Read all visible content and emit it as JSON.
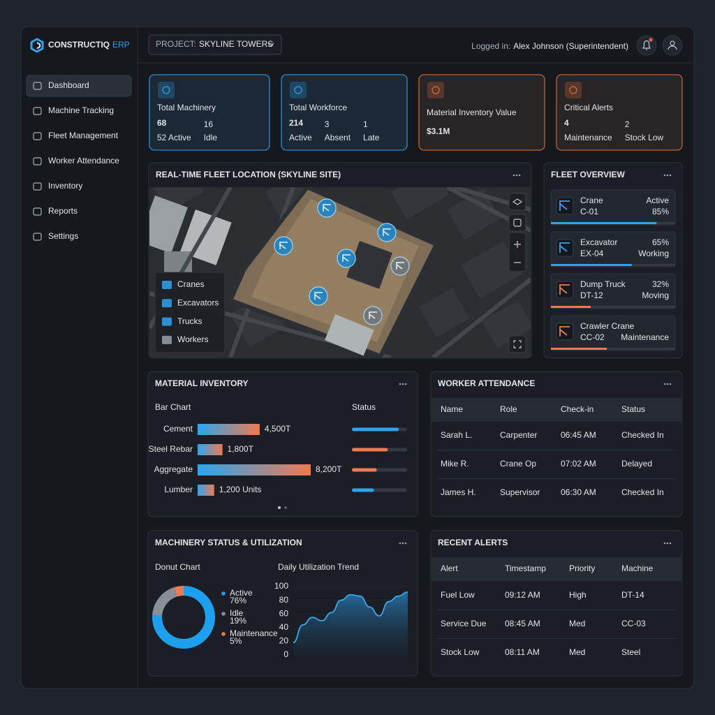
{
  "brand": {
    "name": "CONSTRUCTIQ",
    "suffix": "ERP"
  },
  "sidebar": {
    "items": [
      "Dashboard",
      "Machine Tracking",
      "Fleet Management",
      "Worker Attendance",
      "Inventory",
      "Reports",
      "Settings"
    ],
    "active": 0
  },
  "header": {
    "project_label": "PROJECT:",
    "project": "SKYLINE TOWERS",
    "logged_label": "Logged in:",
    "user": "Alex Johnson (Superintendent)"
  },
  "kpis": [
    {
      "title": "Total Machinery",
      "border": "#2e8fd0",
      "stats": [
        {
          "value": 68,
          "label": "52 Active",
          "color": "#4fb3f0"
        },
        {
          "value": 16,
          "label": "Idle",
          "color": "#b7bcc4"
        }
      ]
    },
    {
      "title": "Total Workforce",
      "border": "#2e8fd0",
      "stats": [
        {
          "value": 214,
          "label": "Active",
          "color": "#4fb3f0"
        },
        {
          "value": 3,
          "label": "Absent",
          "color": "#f08a5a"
        },
        {
          "value": 1,
          "label": "Late",
          "color": "#f08a5a"
        }
      ]
    },
    {
      "title": "Material Inventory Value",
      "border": "#c0653a",
      "value": "$3.1M"
    },
    {
      "title": "Critical Alerts",
      "border": "#c0653a",
      "stats": [
        {
          "value": 4,
          "label": "Maintenance",
          "color": "#f08a5a"
        },
        {
          "value": 2,
          "label": "Stock Low",
          "color": "#f08a5a"
        }
      ]
    }
  ],
  "map": {
    "title": "REAL-TIME FLEET LOCATION (SKYLINE SITE)",
    "legend": [
      "Cranes",
      "Excavators",
      "Trucks",
      "Workers"
    ]
  },
  "fleet": {
    "title": "FLEET OVERVIEW",
    "items": [
      {
        "name": "Crane",
        "id": "C-01",
        "top": "Active",
        "bottom": "85%",
        "progress": 85,
        "color": "#2ea3f2"
      },
      {
        "name": "Excavator",
        "id": "EX-04",
        "top": "65%",
        "bottom": "Working",
        "progress": 65,
        "color": "#2ea3f2"
      },
      {
        "name": "Dump Truck",
        "id": "DT-12",
        "top": "32%",
        "bottom": "Moving",
        "progress": 32,
        "color": "#f07a50"
      },
      {
        "name": "Crawler Crane",
        "id": "CC-02",
        "bottom": "Maintenance",
        "progress": 45,
        "color": "#f07a50"
      }
    ]
  },
  "inventory": {
    "title": "MATERIAL INVENTORY",
    "chart_label": "Bar Chart",
    "status_label": "Status",
    "categories": [
      "Cement",
      "Steel Rebar",
      "Aggregate",
      "Lumber"
    ],
    "values": [
      4500,
      1800,
      8200,
      1200
    ],
    "value_labels": [
      "4,500T",
      "1,800T",
      "8,200T",
      "1,200 Units"
    ],
    "status": [
      85,
      65,
      45,
      40
    ],
    "status_colors": [
      "#2ea3f2",
      "#f07a50",
      "#f07a50",
      "#2ea3f2"
    ]
  },
  "attendance": {
    "title": "WORKER ATTENDANCE",
    "columns": [
      "Name",
      "Role",
      "Check-in",
      "Status"
    ],
    "rows": [
      [
        "Sarah L.",
        "Carpenter",
        "06:45 AM",
        "Checked In"
      ],
      [
        "Mike R.",
        "Crane Op",
        "07:02 AM",
        "Delayed"
      ],
      [
        "James H.",
        "Supervisor",
        "06:30 AM",
        "Checked In"
      ]
    ],
    "status_colors": [
      "#3ecf8e",
      "#f07a50",
      "#3ecf8e"
    ]
  },
  "machinery": {
    "title": "MACHINERY STATUS & UTILIZATION",
    "donut": {
      "label": "Donut Chart",
      "categories": [
        "Active",
        "Idle",
        "Maintenance"
      ],
      "values": [
        76,
        19,
        5
      ],
      "value_labels": [
        "76%",
        "19%",
        "5%"
      ],
      "colors": [
        "#1ea0f0",
        "#8a8f96",
        "#f07a50"
      ]
    },
    "trend": {
      "label": "Daily Utilization Trend",
      "values": [
        18,
        44,
        55,
        50,
        62,
        80,
        88,
        86,
        70,
        57,
        78,
        86,
        92
      ],
      "ylim": [
        0,
        100
      ],
      "yticks": [
        0,
        20,
        40,
        60,
        80,
        100
      ],
      "color": "#3aa8ee"
    }
  },
  "alerts": {
    "title": "RECENT ALERTS",
    "columns": [
      "Alert",
      "Timestamp",
      "Priority",
      "Machine"
    ],
    "rows": [
      [
        "Fuel Low",
        "09:12 AM",
        "High",
        "DT-14"
      ],
      [
        "Service Due",
        "08:45 AM",
        "Med",
        "CC-03"
      ],
      [
        "Stock Low",
        "08:11 AM",
        "Med",
        "Steel"
      ]
    ],
    "alert_colors": [
      "#f2b632",
      "#e3e6ea",
      "#f2b632"
    ],
    "priority_colors": [
      "#f07a50",
      "#f2b632",
      "#f2b632"
    ]
  }
}
